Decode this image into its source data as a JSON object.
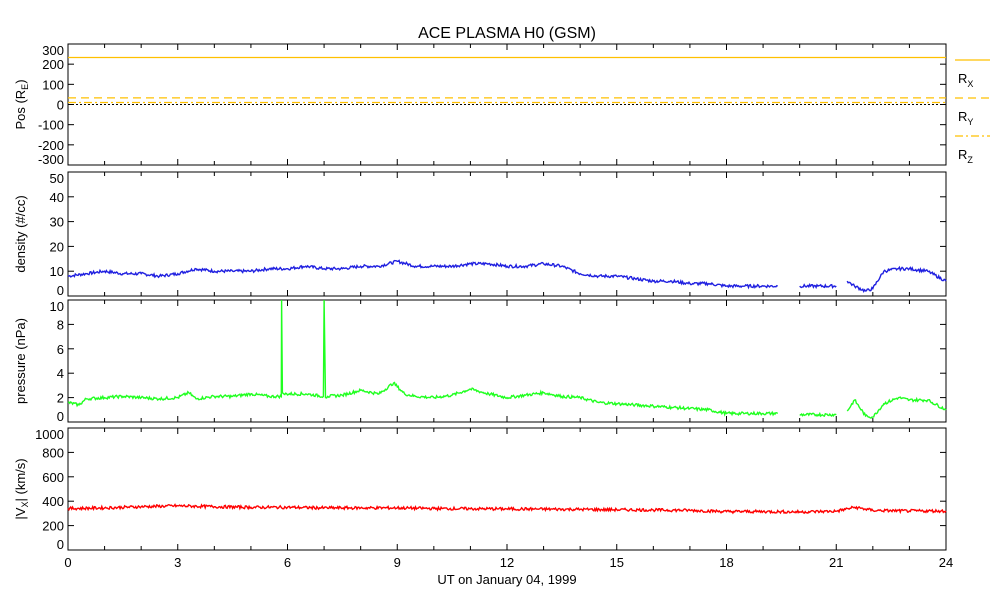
{
  "chart_data": [
    {
      "type": "line",
      "title": "ACE PLASMA H0 (GSM)",
      "ylabel": "Pos (R_E)",
      "ylabel_main": "Pos (R",
      "ylabel_sub": "E",
      "ylabel_close": ")",
      "ylim": [
        -300,
        300
      ],
      "yticks": [
        "300",
        "200",
        "100",
        "0",
        "-100",
        "-200",
        "-300"
      ],
      "yticks_values": [
        300,
        200,
        100,
        0,
        -100,
        -200,
        -300
      ],
      "x": [
        0,
        24
      ],
      "series": [
        {
          "name": "RX",
          "main": "R",
          "sub": "X",
          "values": [
            233,
            233
          ],
          "style": "solid",
          "color": "#ffc000"
        },
        {
          "name": "RY",
          "main": "R",
          "sub": "Y",
          "values": [
            33,
            33
          ],
          "style": "dashed",
          "color": "#ffc000"
        },
        {
          "name": "RZ",
          "main": "R",
          "sub": "Z",
          "values": [
            10,
            10
          ],
          "style": "dashdot",
          "color": "#ffc000"
        }
      ],
      "reference_line": 0
    },
    {
      "type": "line",
      "ylabel": "density (#/cc)",
      "ylim": [
        0,
        50
      ],
      "yticks": [
        "50",
        "40",
        "30",
        "20",
        "10",
        "0"
      ],
      "yticks_values": [
        50,
        40,
        30,
        20,
        10,
        0
      ],
      "color": "#2020e0",
      "x": [
        0,
        0.5,
        1,
        1.5,
        2,
        2.5,
        3,
        3.5,
        4,
        4.5,
        5,
        5.5,
        6,
        6.5,
        7,
        7.5,
        8,
        8.5,
        9,
        9.5,
        10,
        10.5,
        11,
        11.5,
        12,
        12.5,
        13,
        13.5,
        14,
        14.5,
        15,
        15.5,
        16,
        16.5,
        17,
        17.5,
        18,
        18.5,
        19,
        19.4,
        null,
        20,
        20.5,
        21,
        null,
        21.3,
        21.5,
        21.8,
        22,
        22.3,
        22.7,
        23,
        23.5,
        24
      ],
      "values": [
        8,
        9,
        10,
        9,
        9,
        8,
        9,
        11,
        10,
        10,
        10,
        11,
        11,
        12,
        11,
        11,
        12,
        12,
        14,
        12,
        12,
        12,
        13,
        13,
        12,
        12,
        13,
        12,
        9,
        8,
        8,
        7,
        6,
        6,
        5,
        5,
        4,
        4,
        4,
        4,
        null,
        4,
        4,
        4,
        null,
        6,
        4,
        2,
        3,
        10,
        11,
        11,
        10,
        6
      ]
    },
    {
      "type": "line",
      "ylabel": "pressure (nPa)",
      "ylim": [
        0,
        10
      ],
      "yticks": [
        "10",
        "8",
        "6",
        "4",
        "2",
        "0"
      ],
      "yticks_values": [
        10,
        8,
        6,
        4,
        2,
        0
      ],
      "color": "#20ff20",
      "x": [
        0,
        0.3,
        0.5,
        1,
        1.5,
        2,
        2.5,
        3,
        3.3,
        3.5,
        4,
        4.5,
        5,
        5.5,
        5.83,
        5.84,
        5.86,
        5.9,
        6.5,
        6.98,
        7.0,
        7.04,
        7.1,
        7.5,
        8,
        8.5,
        8.9,
        9.2,
        9.5,
        10,
        10.5,
        11,
        11.5,
        12,
        12.5,
        13,
        13.5,
        14,
        14.5,
        15,
        15.5,
        16,
        16.5,
        17,
        17.5,
        18,
        18.5,
        19,
        19.4,
        null,
        20,
        20.5,
        21,
        null,
        21.3,
        21.5,
        21.8,
        22,
        22.3,
        22.7,
        23,
        23.5,
        24
      ],
      "values": [
        1.6,
        1.4,
        1.9,
        2,
        2.1,
        2,
        1.9,
        2,
        2.4,
        1.9,
        2.1,
        2.1,
        2.3,
        2.1,
        2.1,
        10.3,
        2.4,
        2.3,
        2.3,
        2.1,
        10.5,
        2.0,
        2.1,
        2.2,
        2.6,
        2.3,
        3.2,
        2.3,
        2.1,
        2.0,
        2.2,
        2.7,
        2.3,
        2.0,
        2.2,
        2.4,
        2.1,
        2.0,
        1.6,
        1.5,
        1.4,
        1.3,
        1.2,
        1.1,
        1.0,
        0.7,
        0.7,
        0.7,
        0.7,
        null,
        0.6,
        0.6,
        0.6,
        null,
        0.9,
        1.8,
        0.5,
        0.4,
        1.5,
        2.0,
        1.8,
        1.8,
        1.0
      ]
    },
    {
      "type": "line",
      "ylabel_main": "|V",
      "ylabel_sub": "X",
      "ylabel_close": "| (km/s)",
      "ylim": [
        0,
        1000
      ],
      "yticks": [
        "1000",
        "800",
        "600",
        "400",
        "200",
        "0"
      ],
      "yticks_values": [
        1000,
        800,
        600,
        400,
        200,
        0
      ],
      "color": "#ff0000",
      "x": [
        0,
        1,
        2,
        3,
        4,
        5,
        6,
        7,
        8,
        9,
        10,
        11,
        12,
        13,
        14,
        15,
        16,
        17,
        18,
        19,
        20,
        21,
        21.5,
        22,
        22.5,
        23,
        24
      ],
      "values": [
        340,
        345,
        355,
        362,
        355,
        350,
        350,
        345,
        345,
        345,
        340,
        338,
        337,
        335,
        333,
        330,
        328,
        325,
        315,
        315,
        312,
        318,
        350,
        325,
        322,
        320,
        320
      ]
    }
  ],
  "xaxis": {
    "label": "UT on January 04, 1999",
    "ticks": [
      "0",
      "3",
      "6",
      "9",
      "12",
      "15",
      "18",
      "21",
      "24"
    ],
    "tick_values": [
      0,
      3,
      6,
      9,
      12,
      15,
      18,
      21,
      24
    ],
    "range": [
      0,
      24
    ]
  }
}
